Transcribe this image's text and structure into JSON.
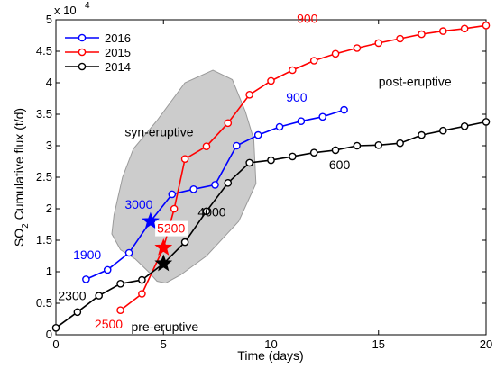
{
  "chart_data": {
    "type": "line",
    "xlabel": "Time (days)",
    "ylabel_main": "SO",
    "ylabel_sub": "2",
    "ylabel_rest": " Cumulative flux (t/d)",
    "y_multiplier_base": "x 10",
    "y_multiplier_exp": "4",
    "xlim": [
      0,
      20
    ],
    "ylim": [
      0,
      5
    ],
    "xticks": [
      0,
      5,
      10,
      15,
      20
    ],
    "yticks": [
      0,
      0.5,
      1,
      1.5,
      2,
      2.5,
      3,
      3.5,
      4,
      4.5,
      5
    ],
    "ytick_labels": [
      "0",
      "0.5",
      "1",
      "1.5",
      "2",
      "2.5",
      "3",
      "3.5",
      "4",
      "4.5",
      "5"
    ],
    "legend_position": "top-left",
    "series": [
      {
        "name": "2016",
        "color": "#0000ff",
        "x": [
          1.4,
          2.4,
          3.4,
          4.4,
          5.4,
          6.4,
          7.4,
          8.4,
          9.4,
          10.4,
          11.4,
          12.4,
          13.4
        ],
        "y": [
          0.88,
          1.03,
          1.3,
          1.8,
          2.23,
          2.31,
          2.38,
          3.0,
          3.17,
          3.3,
          3.39,
          3.46,
          3.57
        ]
      },
      {
        "name": "2015",
        "color": "#ff0000",
        "x": [
          3,
          4,
          5,
          5.5,
          6,
          7,
          8,
          9,
          10,
          11,
          12,
          13,
          14,
          15,
          16,
          17,
          18,
          19,
          20
        ],
        "y": [
          0.39,
          0.65,
          1.38,
          2.0,
          2.79,
          2.99,
          3.36,
          3.81,
          4.03,
          4.2,
          4.35,
          4.46,
          4.55,
          4.63,
          4.7,
          4.77,
          4.82,
          4.86,
          4.91
        ]
      },
      {
        "name": "2014",
        "color": "#000000",
        "x": [
          0,
          1,
          2,
          3,
          4,
          5,
          6,
          7,
          8,
          9,
          10,
          11,
          12,
          13,
          14,
          15,
          16,
          17,
          18,
          19,
          20
        ],
        "y": [
          0.11,
          0.36,
          0.62,
          0.81,
          0.87,
          1.13,
          1.47,
          1.96,
          2.41,
          2.73,
          2.77,
          2.83,
          2.89,
          2.93,
          3.0,
          3.01,
          3.04,
          3.17,
          3.24,
          3.31,
          3.38
        ]
      }
    ],
    "stars": [
      {
        "series": "2016",
        "x": 4.4,
        "y": 1.8,
        "color": "#0000ff"
      },
      {
        "series": "2015",
        "x": 5,
        "y": 1.38,
        "color": "#ff0000"
      },
      {
        "series": "2014",
        "x": 5,
        "y": 1.13,
        "color": "#000000"
      }
    ],
    "region": {
      "color": "#cccccc",
      "outline": [
        [
          2.7,
          1.9
        ],
        [
          3.1,
          2.5
        ],
        [
          3.6,
          2.95
        ],
        [
          4.7,
          3.4
        ],
        [
          6.0,
          4.0
        ],
        [
          7.3,
          4.2
        ],
        [
          8.2,
          4.05
        ],
        [
          8.8,
          3.55
        ],
        [
          9.2,
          3.1
        ],
        [
          9.3,
          2.4
        ],
        [
          8.5,
          1.8
        ],
        [
          7.0,
          1.25
        ],
        [
          5.8,
          0.95
        ],
        [
          5.1,
          0.82
        ],
        [
          4.7,
          0.85
        ],
        [
          4.3,
          1.0
        ],
        [
          3.7,
          1.2
        ],
        [
          3.0,
          1.35
        ],
        [
          2.6,
          1.6
        ]
      ]
    },
    "annotations": [
      {
        "text": "900",
        "x": 11.2,
        "y": 4.95,
        "color": "#ff0000"
      },
      {
        "text": "900",
        "x": 10.7,
        "y": 3.7,
        "color": "#0000ff"
      },
      {
        "text": "post-eruptive",
        "x": 15,
        "y": 3.95,
        "color": "#000000"
      },
      {
        "text": "syn-eruptive",
        "x": 3.2,
        "y": 3.15,
        "color": "#000000"
      },
      {
        "text": "3000",
        "x": 3.2,
        "y": 2.0,
        "color": "#0000ff"
      },
      {
        "text": "5200",
        "x": 4.7,
        "y": 1.62,
        "color": "#ff0000",
        "box": true
      },
      {
        "text": "4000",
        "x": 6.6,
        "y": 1.88,
        "color": "#000000"
      },
      {
        "text": "600",
        "x": 12.7,
        "y": 2.63,
        "color": "#000000"
      },
      {
        "text": "1900",
        "x": 0.8,
        "y": 1.2,
        "color": "#0000ff"
      },
      {
        "text": "2300",
        "x": 0.1,
        "y": 0.55,
        "color": "#000000"
      },
      {
        "text": "2500",
        "x": 1.8,
        "y": 0.1,
        "color": "#ff0000"
      },
      {
        "text": "pre-eruptive",
        "x": 3.5,
        "y": 0.06,
        "color": "#000000"
      }
    ]
  }
}
